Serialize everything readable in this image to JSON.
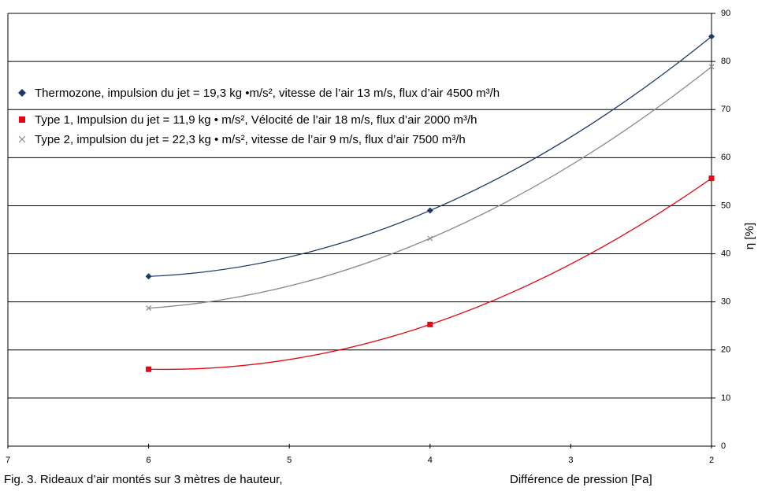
{
  "chart_data": {
    "type": "line",
    "x": [
      6,
      4,
      2
    ],
    "xlim": [
      7,
      2
    ],
    "xticks": [
      7,
      6,
      5,
      4,
      3,
      2
    ],
    "y2lim": [
      0,
      90
    ],
    "y2ticks": [
      0,
      10,
      20,
      30,
      40,
      50,
      60,
      70,
      80,
      90
    ],
    "y2_label": "η [%]",
    "x_label": "Différence de pression [Pa]",
    "caption": "Fig. 3. Rideaux d’air montés sur 3 mètres de hauteur,",
    "grid": true,
    "series": [
      {
        "name": "Thermozone, impulsion du jet = 19,3 kg •m/s², vitesse de l’air 13 m/s, flux d’air 4500 m³/h",
        "color": "#1f3a68",
        "marker": "diamond",
        "axis": "y2",
        "values": [
          35.3,
          49,
          85.2
        ]
      },
      {
        "name": "Type 1, Impulsion du jet = 11,9 kg • m/s², Vélocité de l’air 18 m/s, flux d’air 2000 m³/h",
        "color": "#e30613",
        "marker": "square",
        "axis": "y2",
        "values": [
          16,
          25.3,
          55.7
        ]
      },
      {
        "name": "Type 2, impulsion du jet = 22,3 kg • m/s², vitesse de l’air 9 m/s, flux d’air 7500 m³/h",
        "color": "#8a8a8a",
        "marker": "x",
        "axis": "y2",
        "values": [
          28.7,
          43.2,
          78.9
        ]
      }
    ]
  }
}
